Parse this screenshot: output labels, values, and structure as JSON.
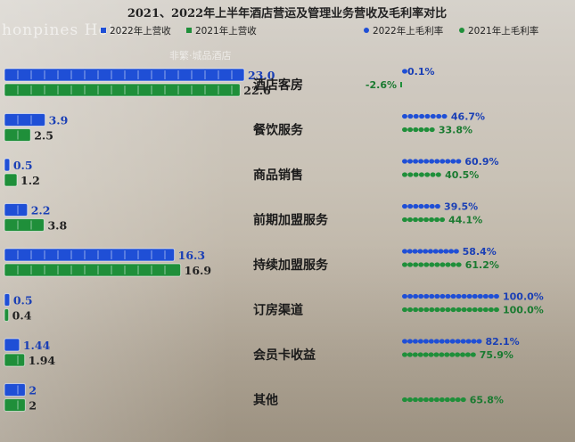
{
  "bg_text": {
    "brand_en": "honpines Hote",
    "brand_cn": "非繁·城品酒店"
  },
  "chart_data": {
    "type": "bar",
    "title": "2021、2022年上半年酒店营运及管理业务营收及毛利率对比",
    "categories": [
      "酒店客房",
      "餐饮服务",
      "商品销售",
      "前期加盟服务",
      "持续加盟服务",
      "订房渠道",
      "会员卡收益",
      "其他"
    ],
    "revenue": {
      "series": [
        {
          "name": "2022年上营收",
          "color": "#1f4fd6",
          "values": [
            23.0,
            3.9,
            0.5,
            2.2,
            16.3,
            0.5,
            1.44,
            2
          ],
          "labels": [
            "23.0",
            "3.9",
            "0.5",
            "2.2",
            "16.3",
            "0.5",
            "1.44",
            "2"
          ]
        },
        {
          "name": "2021年上营收",
          "color": "#1f8f3a",
          "values": [
            22.6,
            2.5,
            1.2,
            3.8,
            16.9,
            0.4,
            1.94,
            2
          ],
          "labels": [
            "22.6",
            "2.5",
            "1.2",
            "3.8",
            "16.9",
            "0.4",
            "1.94",
            "2"
          ]
        }
      ],
      "xlim": [
        0,
        23.6
      ]
    },
    "margin": {
      "series": [
        {
          "name": "2022年上毛利率",
          "color": "#1f4fd6",
          "values": [
            0.1,
            46.7,
            60.9,
            39.5,
            58.4,
            100.0,
            82.1,
            null
          ],
          "labels": [
            "0.1%",
            "46.7%",
            "60.9%",
            "39.5%",
            "58.4%",
            "100.0%",
            "82.1%",
            ""
          ]
        },
        {
          "name": "2021年上毛利率",
          "color": "#1f8f3a",
          "values": [
            -2.6,
            33.8,
            40.5,
            44.1,
            61.2,
            100.0,
            75.9,
            65.8
          ],
          "labels": [
            "-2.6%",
            "33.8%",
            "40.5%",
            "44.1%",
            "61.2%",
            "100.0%",
            "75.9%",
            "65.8%"
          ]
        }
      ],
      "xlim": [
        0,
        100
      ]
    }
  }
}
